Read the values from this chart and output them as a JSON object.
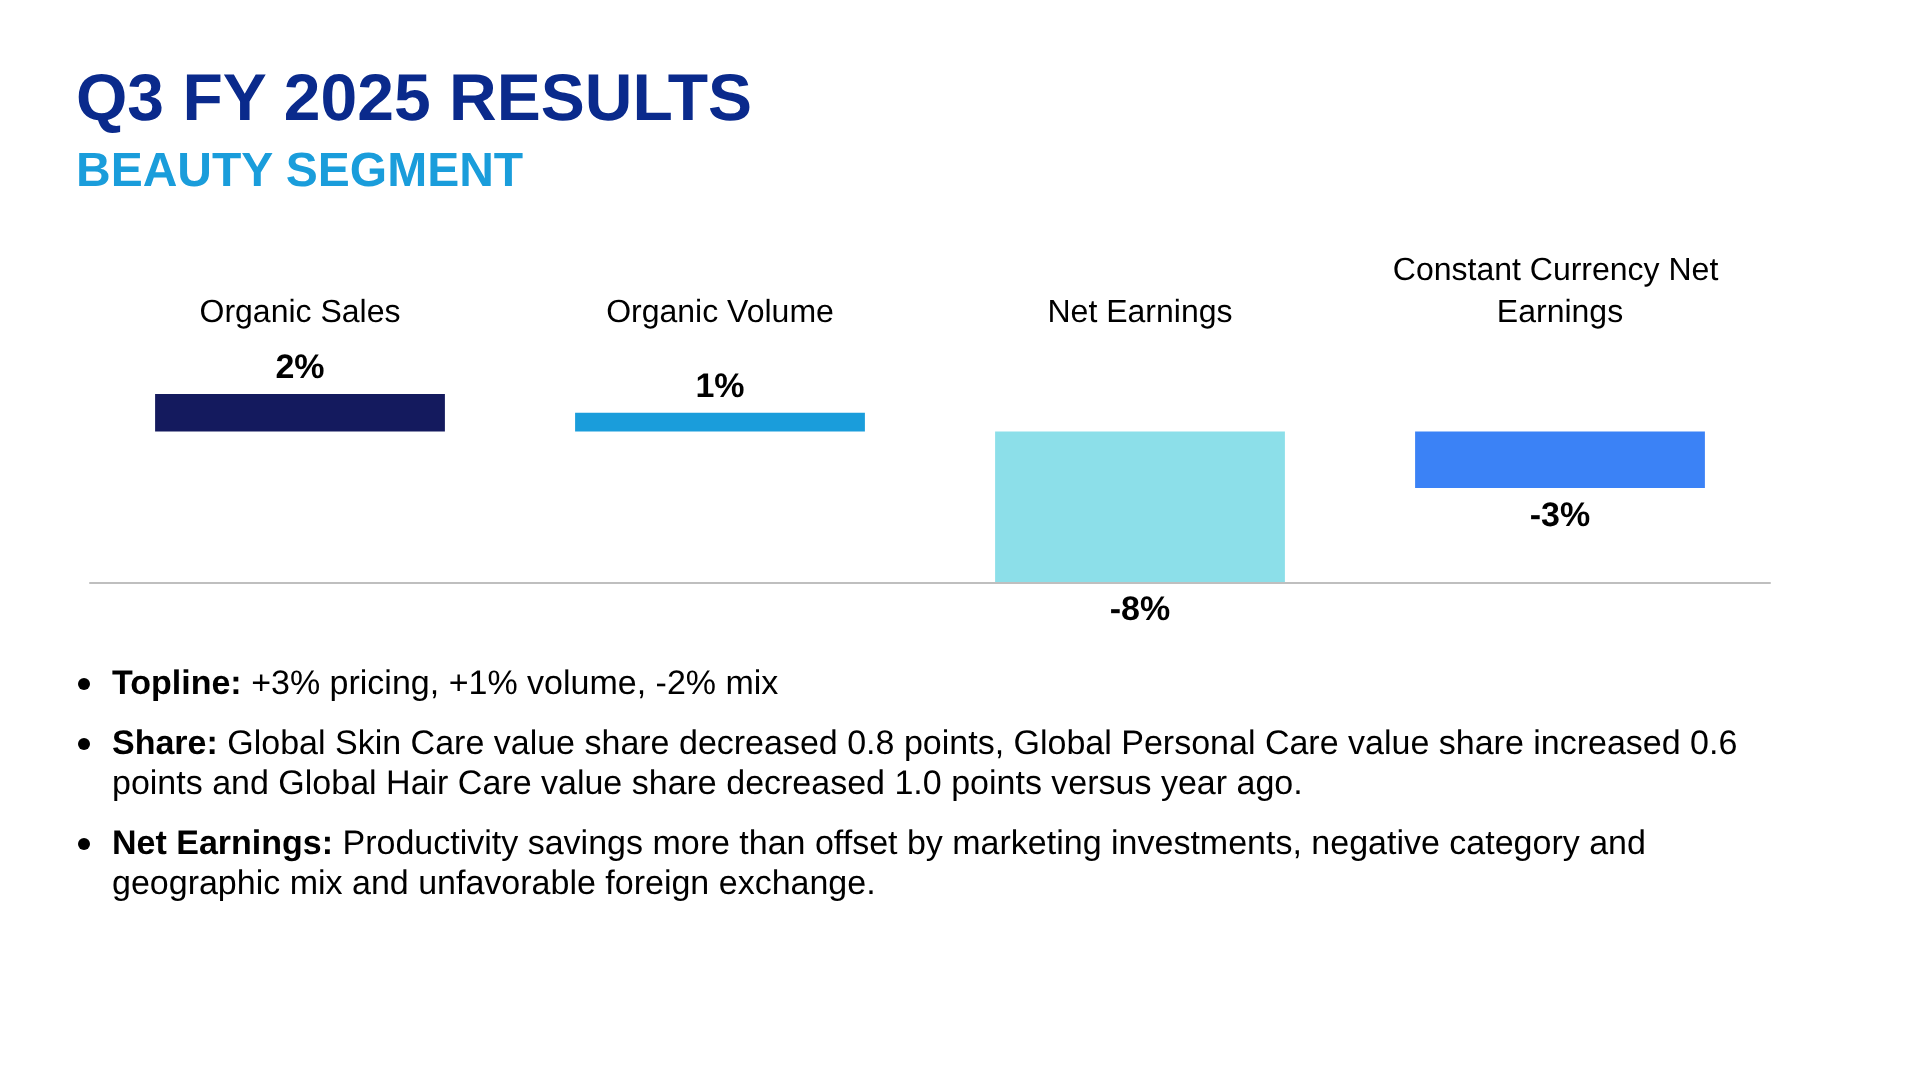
{
  "chart_data": {
    "type": "bar",
    "title": "Q3 FY 2025 RESULTS",
    "subtitle": "BEAUTY SEGMENT",
    "categories": [
      "Organic Sales",
      "Organic Volume",
      "Net Earnings",
      "Constant Currency Net Earnings"
    ],
    "values": [
      2,
      1,
      -8,
      -3
    ],
    "colors": [
      "#141a5e",
      "#1a9ddb",
      "#8cdfe9",
      "#3b82f6"
    ],
    "value_labels": [
      "2%",
      "1%",
      "-8%",
      "-3%"
    ],
    "grid": false,
    "annotations": [
      "Topline: +3% pricing, +1% volume, -2% mix",
      "Share: Global Skin Care value share decreased 0.8 points, Global Personal Care value share increased 0.6 points and Global Hair Care value share decreased 1.0 points versus year ago.",
      "Net Earnings: Productivity savings more than offset by marketing investments, negative category and geographic mix and unfavorable foreign exchange."
    ]
  }
}
